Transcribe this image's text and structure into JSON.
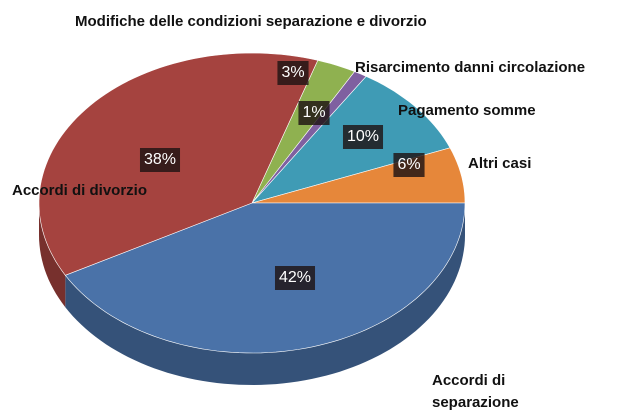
{
  "chart_data": {
    "type": "pie",
    "title": "Modifiche delle condizioni separazione e divorzio",
    "categories": [
      "Modifiche delle condizioni separazione e divorzio",
      "Risarcimento danni circolazione",
      "Pagamento somme",
      "Altri casi",
      "Accordi di separazione",
      "Accordi di divorzio"
    ],
    "values": [
      3,
      1,
      10,
      6,
      42,
      38
    ],
    "value_labels": [
      "3%",
      "1%",
      "10%",
      "6%",
      "42%",
      "38%"
    ],
    "colors": [
      "#8fb150",
      "#7f60a0",
      "#3f9bb5",
      "#e6873a",
      "#4a72a8",
      "#a5433f"
    ]
  }
}
